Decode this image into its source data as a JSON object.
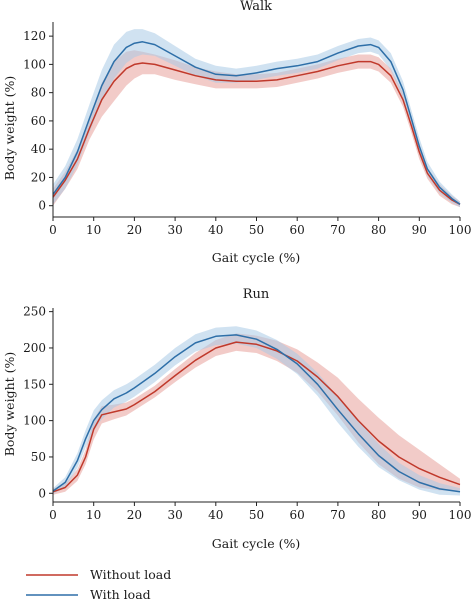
{
  "chart_data": [
    {
      "type": "line",
      "title": "Walk",
      "xlabel": "Gait cycle (%)",
      "ylabel": "Body weight (%)",
      "xlim": [
        0,
        100
      ],
      "ylim": [
        -8,
        130
      ],
      "xticks": [
        0,
        10,
        20,
        30,
        40,
        50,
        60,
        70,
        80,
        90,
        100
      ],
      "yticks": [
        0,
        20,
        40,
        60,
        80,
        100,
        120
      ],
      "grid": false,
      "series": [
        {
          "name": "Without load",
          "color": "#c0392b",
          "band_color": "#e8a09a",
          "x": [
            0,
            3,
            6,
            9,
            12,
            15,
            18,
            20,
            22,
            25,
            30,
            35,
            40,
            45,
            50,
            55,
            60,
            65,
            70,
            75,
            78,
            80,
            83,
            86,
            88,
            90,
            92,
            95,
            98,
            100
          ],
          "y": [
            6,
            18,
            33,
            55,
            75,
            88,
            97,
            100,
            101,
            100,
            96,
            92,
            89,
            88,
            88,
            89,
            92,
            95,
            99,
            102,
            102,
            100,
            92,
            75,
            57,
            38,
            23,
            11,
            4,
            1
          ],
          "band": [
            6,
            6,
            7,
            8,
            12,
            14,
            12,
            10,
            8,
            7,
            7,
            6,
            6,
            5,
            5,
            5,
            5,
            5,
            5,
            5,
            5,
            5,
            5,
            5,
            5,
            5,
            4,
            4,
            3,
            2
          ]
        },
        {
          "name": "With load",
          "color": "#2e6fa8",
          "band_color": "#a9cbe6",
          "x": [
            0,
            3,
            6,
            9,
            12,
            15,
            18,
            20,
            22,
            25,
            30,
            35,
            40,
            45,
            50,
            55,
            60,
            65,
            70,
            75,
            78,
            80,
            83,
            86,
            88,
            90,
            92,
            95,
            98,
            100
          ],
          "y": [
            8,
            20,
            38,
            62,
            85,
            102,
            112,
            115,
            116,
            114,
            106,
            98,
            93,
            92,
            94,
            97,
            99,
            102,
            108,
            113,
            114,
            112,
            102,
            82,
            62,
            42,
            26,
            13,
            5,
            1
          ],
          "band": [
            7,
            8,
            9,
            10,
            11,
            12,
            11,
            10,
            9,
            8,
            7,
            6,
            6,
            5,
            5,
            5,
            5,
            5,
            5,
            5,
            5,
            5,
            6,
            6,
            6,
            6,
            5,
            4,
            3,
            2
          ]
        }
      ]
    },
    {
      "type": "line",
      "title": "Run",
      "xlabel": "Gait cycle (%)",
      "ylabel": "Body weight (%)",
      "xlim": [
        0,
        100
      ],
      "ylim": [
        -12,
        255
      ],
      "xticks": [
        0,
        10,
        20,
        30,
        40,
        50,
        60,
        70,
        80,
        90,
        100
      ],
      "yticks": [
        0,
        50,
        100,
        150,
        200,
        250
      ],
      "grid": false,
      "series": [
        {
          "name": "Without load",
          "color": "#c0392b",
          "band_color": "#e8a09a",
          "x": [
            0,
            3,
            6,
            8,
            10,
            12,
            15,
            18,
            20,
            25,
            30,
            35,
            40,
            45,
            50,
            55,
            60,
            65,
            70,
            75,
            80,
            85,
            90,
            95,
            100
          ],
          "y": [
            2,
            8,
            25,
            50,
            88,
            108,
            112,
            116,
            122,
            140,
            162,
            183,
            200,
            208,
            205,
            196,
            182,
            160,
            133,
            100,
            72,
            50,
            34,
            22,
            12
          ],
          "band": [
            4,
            6,
            8,
            10,
            14,
            12,
            10,
            9,
            8,
            8,
            9,
            10,
            11,
            12,
            12,
            14,
            16,
            20,
            26,
            30,
            32,
            30,
            26,
            18,
            8
          ]
        },
        {
          "name": "With load",
          "color": "#2e6fa8",
          "band_color": "#a9cbe6",
          "x": [
            0,
            3,
            6,
            8,
            10,
            12,
            15,
            18,
            20,
            25,
            30,
            35,
            40,
            45,
            50,
            55,
            60,
            65,
            70,
            75,
            80,
            85,
            90,
            95,
            100
          ],
          "y": [
            3,
            15,
            45,
            75,
            100,
            115,
            130,
            138,
            145,
            165,
            188,
            207,
            216,
            218,
            212,
            198,
            178,
            150,
            115,
            82,
            52,
            30,
            15,
            6,
            2
          ],
          "band": [
            4,
            7,
            10,
            12,
            14,
            13,
            12,
            12,
            12,
            12,
            12,
            12,
            12,
            12,
            12,
            13,
            14,
            16,
            18,
            18,
            16,
            12,
            10,
            8,
            5
          ]
        }
      ]
    }
  ],
  "legend": {
    "position": "bottom-left",
    "items": [
      {
        "label": "Without load",
        "color": "#c0392b"
      },
      {
        "label": "With load",
        "color": "#2e6fa8"
      }
    ]
  }
}
